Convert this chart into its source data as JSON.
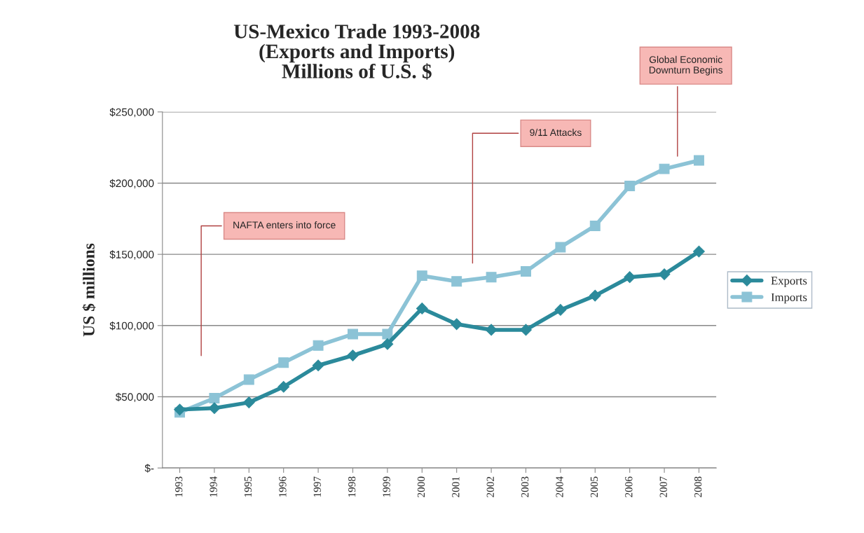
{
  "chart_data": {
    "type": "line",
    "title": "US-Mexico Trade 1993-2008\n(Exports and Imports)\nMillions of U.S. $",
    "ylabel": "US $ millions",
    "categories": [
      "1993",
      "1994",
      "1995",
      "1996",
      "1997",
      "1998",
      "1999",
      "2000",
      "2001",
      "2002",
      "2003",
      "2004",
      "2005",
      "2006",
      "2007",
      "2008"
    ],
    "series": [
      {
        "name": "Exports",
        "color": "#2b8a9b",
        "marker": "diamond",
        "values": [
          41000,
          42000,
          46000,
          57000,
          72000,
          79000,
          87000,
          112000,
          101000,
          97000,
          97000,
          111000,
          121000,
          134000,
          136000,
          152000
        ]
      },
      {
        "name": "Imports",
        "color": "#8cc3d6",
        "marker": "square",
        "values": [
          39000,
          49000,
          62000,
          74000,
          86000,
          94000,
          94000,
          135000,
          131000,
          134000,
          138000,
          155000,
          170000,
          198000,
          210000,
          216000
        ]
      }
    ],
    "ylim": [
      0,
      250000
    ],
    "yticks": [
      {
        "value": 0,
        "label": "$-"
      },
      {
        "value": 50000,
        "label": "$50,000"
      },
      {
        "value": 100000,
        "label": "$100,000"
      },
      {
        "value": 150000,
        "label": "$150,000"
      },
      {
        "value": 200000,
        "label": "$200,000"
      },
      {
        "value": 250000,
        "label": "$250,000"
      }
    ],
    "grid": "y",
    "legend": "right",
    "line_style": "solid",
    "annotations": [
      "NAFTA enters into force",
      "9/11 Attacks",
      "Global Economic\nDownturn Begins"
    ]
  }
}
